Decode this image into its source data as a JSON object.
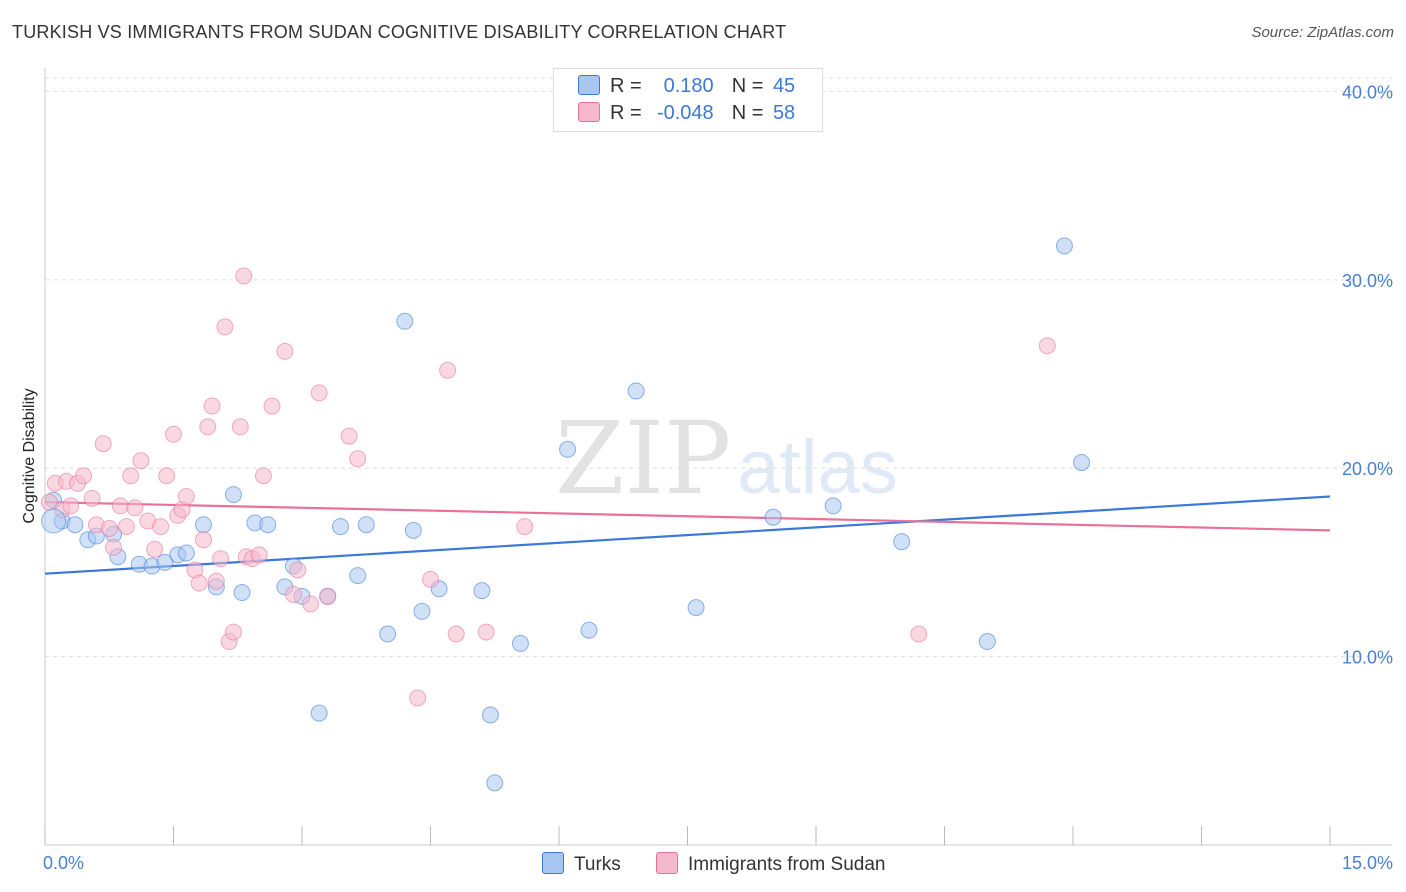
{
  "title": "TURKISH VS IMMIGRANTS FROM SUDAN COGNITIVE DISABILITY CORRELATION CHART",
  "source": "Source: ZipAtlas.com",
  "watermark": {
    "zip": "ZIP",
    "atlas": "atlas"
  },
  "legend_top": {
    "rows": [
      {
        "r_label": "R =",
        "r_value": "0.180",
        "n_label": "N =",
        "n_value": "45",
        "color": "#a7c7f0"
      },
      {
        "r_label": "R =",
        "r_value": "-0.048",
        "n_label": "N =",
        "n_value": "58",
        "color": "#f6b8cb"
      }
    ]
  },
  "legend_bottom": [
    {
      "label": "Turks",
      "color": "#a7c7f0"
    },
    {
      "label": "Immigrants from Sudan",
      "color": "#f6b8cb"
    }
  ],
  "chart_data": {
    "type": "scatter",
    "title": "TURKISH VS IMMIGRANTS FROM SUDAN COGNITIVE DISABILITY CORRELATION CHART",
    "xlabel": "",
    "ylabel": "Cognitive Disability",
    "xlim": [
      0,
      15
    ],
    "ylim": [
      0,
      40.5
    ],
    "x_tick_labels": [
      "0.0%",
      "15.0%"
    ],
    "y_ticks": [
      10,
      20,
      30,
      40
    ],
    "y_tick_labels": [
      "10.0%",
      "20.0%",
      "30.0%",
      "40.0%"
    ],
    "grid": true,
    "series": [
      {
        "name": "Turks",
        "color": "#3c78d8",
        "fill": "#a7c7f0",
        "trend": {
          "x": [
            0,
            15
          ],
          "y": [
            14.4,
            18.5
          ]
        },
        "points": [
          {
            "x": 0.1,
            "y": 18.3
          },
          {
            "x": 0.2,
            "y": 17.2
          },
          {
            "x": 0.35,
            "y": 17.0
          },
          {
            "x": 0.5,
            "y": 16.2
          },
          {
            "x": 0.6,
            "y": 16.4
          },
          {
            "x": 0.8,
            "y": 16.5
          },
          {
            "x": 0.85,
            "y": 15.3
          },
          {
            "x": 1.1,
            "y": 14.9
          },
          {
            "x": 1.25,
            "y": 14.8
          },
          {
            "x": 1.4,
            "y": 15.0
          },
          {
            "x": 1.55,
            "y": 15.4
          },
          {
            "x": 1.65,
            "y": 15.5
          },
          {
            "x": 1.85,
            "y": 17.0
          },
          {
            "x": 2.0,
            "y": 13.7
          },
          {
            "x": 2.2,
            "y": 18.6
          },
          {
            "x": 2.3,
            "y": 13.4
          },
          {
            "x": 2.45,
            "y": 17.1
          },
          {
            "x": 2.6,
            "y": 17.0
          },
          {
            "x": 2.8,
            "y": 13.7
          },
          {
            "x": 2.9,
            "y": 14.8
          },
          {
            "x": 3.0,
            "y": 13.2
          },
          {
            "x": 3.2,
            "y": 7.0
          },
          {
            "x": 3.3,
            "y": 13.2
          },
          {
            "x": 3.45,
            "y": 16.9
          },
          {
            "x": 3.65,
            "y": 14.3
          },
          {
            "x": 3.75,
            "y": 17.0
          },
          {
            "x": 4.0,
            "y": 11.2
          },
          {
            "x": 4.2,
            "y": 27.8
          },
          {
            "x": 4.3,
            "y": 16.7
          },
          {
            "x": 4.4,
            "y": 12.4
          },
          {
            "x": 4.6,
            "y": 13.6
          },
          {
            "x": 5.1,
            "y": 13.5
          },
          {
            "x": 5.2,
            "y": 6.9
          },
          {
            "x": 5.25,
            "y": 3.3
          },
          {
            "x": 5.55,
            "y": 10.7
          },
          {
            "x": 6.1,
            "y": 21.0
          },
          {
            "x": 6.35,
            "y": 11.4
          },
          {
            "x": 6.9,
            "y": 24.1
          },
          {
            "x": 7.6,
            "y": 12.6
          },
          {
            "x": 8.5,
            "y": 17.4
          },
          {
            "x": 9.2,
            "y": 18.0
          },
          {
            "x": 10.0,
            "y": 16.1
          },
          {
            "x": 11.0,
            "y": 10.8
          },
          {
            "x": 11.9,
            "y": 31.8
          },
          {
            "x": 12.1,
            "y": 20.3
          }
        ]
      },
      {
        "name": "Immigrants from Sudan",
        "color": "#e8709a",
        "fill": "#f6b8cb",
        "trend": {
          "x": [
            0,
            15
          ],
          "y": [
            18.2,
            16.7
          ]
        },
        "points": [
          {
            "x": 0.05,
            "y": 18.2
          },
          {
            "x": 0.12,
            "y": 19.2
          },
          {
            "x": 0.2,
            "y": 17.8
          },
          {
            "x": 0.25,
            "y": 19.3
          },
          {
            "x": 0.3,
            "y": 18.0
          },
          {
            "x": 0.38,
            "y": 19.2
          },
          {
            "x": 0.45,
            "y": 19.6
          },
          {
            "x": 0.55,
            "y": 18.4
          },
          {
            "x": 0.6,
            "y": 17.0
          },
          {
            "x": 0.68,
            "y": 21.3
          },
          {
            "x": 0.75,
            "y": 16.8
          },
          {
            "x": 0.8,
            "y": 15.8
          },
          {
            "x": 0.88,
            "y": 18.0
          },
          {
            "x": 0.95,
            "y": 16.9
          },
          {
            "x": 1.0,
            "y": 19.6
          },
          {
            "x": 1.05,
            "y": 17.9
          },
          {
            "x": 1.12,
            "y": 20.4
          },
          {
            "x": 1.2,
            "y": 17.2
          },
          {
            "x": 1.28,
            "y": 15.7
          },
          {
            "x": 1.35,
            "y": 16.9
          },
          {
            "x": 1.42,
            "y": 19.6
          },
          {
            "x": 1.5,
            "y": 21.8
          },
          {
            "x": 1.55,
            "y": 17.5
          },
          {
            "x": 1.6,
            "y": 17.8
          },
          {
            "x": 1.65,
            "y": 18.5
          },
          {
            "x": 1.75,
            "y": 14.6
          },
          {
            "x": 1.8,
            "y": 13.9
          },
          {
            "x": 1.85,
            "y": 16.2
          },
          {
            "x": 1.9,
            "y": 22.2
          },
          {
            "x": 1.95,
            "y": 23.3
          },
          {
            "x": 2.0,
            "y": 14.0
          },
          {
            "x": 2.05,
            "y": 15.2
          },
          {
            "x": 2.1,
            "y": 27.5
          },
          {
            "x": 2.15,
            "y": 10.8
          },
          {
            "x": 2.2,
            "y": 11.3
          },
          {
            "x": 2.28,
            "y": 22.2
          },
          {
            "x": 2.32,
            "y": 30.2
          },
          {
            "x": 2.35,
            "y": 15.3
          },
          {
            "x": 2.42,
            "y": 15.2
          },
          {
            "x": 2.5,
            "y": 15.4
          },
          {
            "x": 2.55,
            "y": 19.6
          },
          {
            "x": 2.65,
            "y": 23.3
          },
          {
            "x": 2.8,
            "y": 26.2
          },
          {
            "x": 2.9,
            "y": 13.3
          },
          {
            "x": 2.95,
            "y": 14.6
          },
          {
            "x": 3.1,
            "y": 12.8
          },
          {
            "x": 3.2,
            "y": 24.0
          },
          {
            "x": 3.3,
            "y": 13.2
          },
          {
            "x": 3.55,
            "y": 21.7
          },
          {
            "x": 3.65,
            "y": 20.5
          },
          {
            "x": 4.35,
            "y": 7.8
          },
          {
            "x": 4.5,
            "y": 14.1
          },
          {
            "x": 4.7,
            "y": 25.2
          },
          {
            "x": 4.8,
            "y": 11.2
          },
          {
            "x": 5.15,
            "y": 11.3
          },
          {
            "x": 5.6,
            "y": 16.9
          },
          {
            "x": 10.2,
            "y": 11.2
          },
          {
            "x": 11.7,
            "y": 26.5
          }
        ]
      }
    ]
  }
}
